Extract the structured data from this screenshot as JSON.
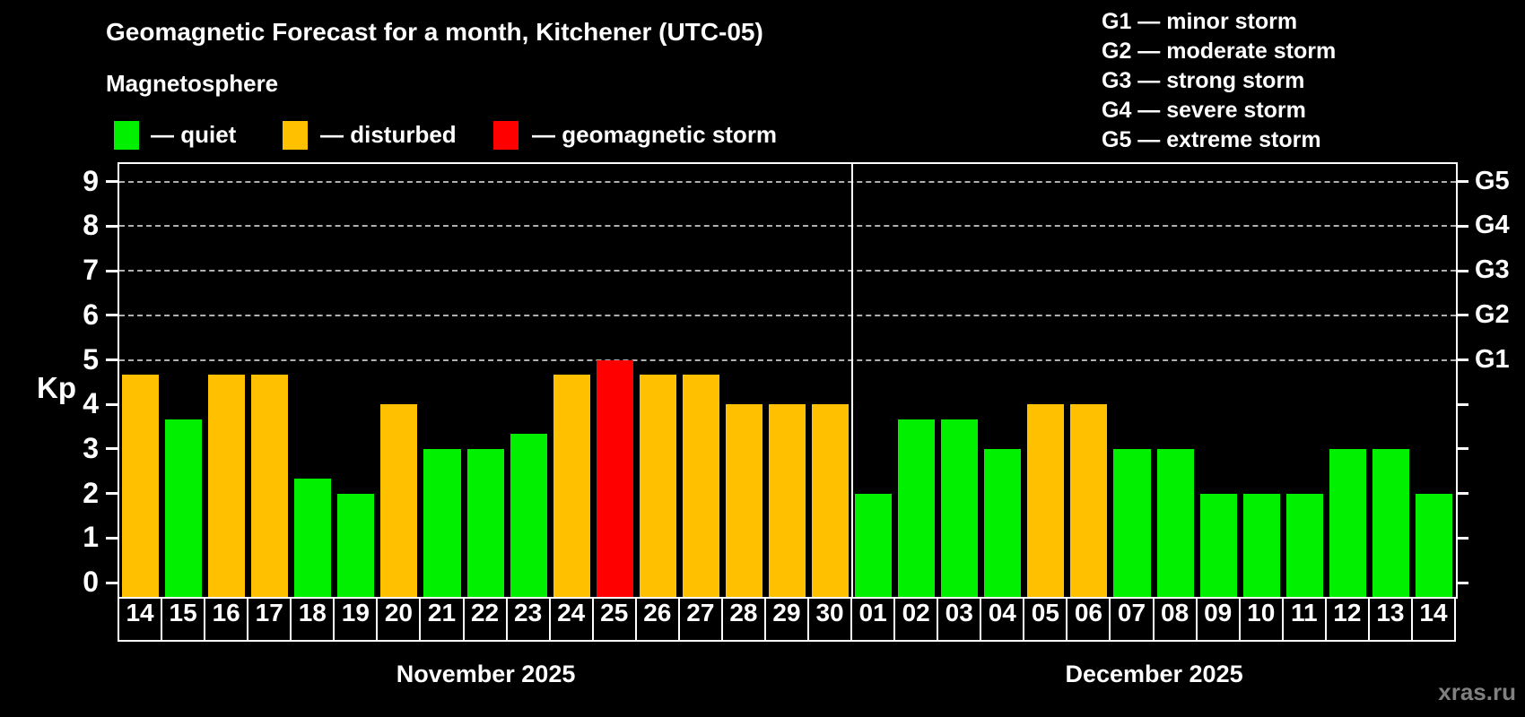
{
  "title": "Geomagnetic Forecast for a month, Kitchener (UTC-05)",
  "subtitle": "Magnetosphere",
  "legend": [
    {
      "label": "— quiet",
      "color_key": "quiet"
    },
    {
      "label": "— disturbed",
      "color_key": "disturbed"
    },
    {
      "label": "— geomagnetic storm",
      "color_key": "storm"
    }
  ],
  "g_legend": [
    "G1 — minor storm",
    "G2 — moderate storm",
    "G3 — strong storm",
    "G4 — severe storm",
    "G5 — extreme storm"
  ],
  "watermark": "xras.ru",
  "colors": {
    "background": "#000000",
    "axis": "#ffffff",
    "grid": "#b0b0b0",
    "watermark": "#808080",
    "quiet": "#00f000",
    "disturbed": "#ffc000",
    "storm": "#ff0000"
  },
  "chart_data": {
    "type": "bar",
    "title": "Geomagnetic Forecast for a month, Kitchener (UTC-05)",
    "ylabel": "Kp",
    "ylim": [
      0,
      9.4
    ],
    "y_ticks": [
      0,
      1,
      2,
      3,
      4,
      5,
      6,
      7,
      8,
      9
    ],
    "gridlines_kp": [
      5,
      6,
      7,
      8,
      9
    ],
    "grid": "dashed",
    "legend_position": "top-left",
    "right_axis_labels": [
      {
        "label": "G1",
        "kp": 5
      },
      {
        "label": "G2",
        "kp": 6
      },
      {
        "label": "G3",
        "kp": 7
      },
      {
        "label": "G4",
        "kp": 8
      },
      {
        "label": "G5",
        "kp": 9
      }
    ],
    "months": [
      {
        "label": "November 2025",
        "days": [
          {
            "day": "14",
            "kp": 4.67,
            "status": "disturbed"
          },
          {
            "day": "15",
            "kp": 3.67,
            "status": "quiet"
          },
          {
            "day": "16",
            "kp": 4.67,
            "status": "disturbed"
          },
          {
            "day": "17",
            "kp": 4.67,
            "status": "disturbed"
          },
          {
            "day": "18",
            "kp": 2.33,
            "status": "quiet"
          },
          {
            "day": "19",
            "kp": 2.0,
            "status": "quiet"
          },
          {
            "day": "20",
            "kp": 4.0,
            "status": "disturbed"
          },
          {
            "day": "21",
            "kp": 3.0,
            "status": "quiet"
          },
          {
            "day": "22",
            "kp": 3.0,
            "status": "quiet"
          },
          {
            "day": "23",
            "kp": 3.33,
            "status": "quiet"
          },
          {
            "day": "24",
            "kp": 4.67,
            "status": "disturbed"
          },
          {
            "day": "25",
            "kp": 5.0,
            "status": "storm"
          },
          {
            "day": "26",
            "kp": 4.67,
            "status": "disturbed"
          },
          {
            "day": "27",
            "kp": 4.67,
            "status": "disturbed"
          },
          {
            "day": "28",
            "kp": 4.0,
            "status": "disturbed"
          },
          {
            "day": "29",
            "kp": 4.0,
            "status": "disturbed"
          },
          {
            "day": "30",
            "kp": 4.0,
            "status": "disturbed"
          }
        ]
      },
      {
        "label": "December 2025",
        "days": [
          {
            "day": "01",
            "kp": 2.0,
            "status": "quiet"
          },
          {
            "day": "02",
            "kp": 3.67,
            "status": "quiet"
          },
          {
            "day": "03",
            "kp": 3.67,
            "status": "quiet"
          },
          {
            "day": "04",
            "kp": 3.0,
            "status": "quiet"
          },
          {
            "day": "05",
            "kp": 4.0,
            "status": "disturbed"
          },
          {
            "day": "06",
            "kp": 4.0,
            "status": "disturbed"
          },
          {
            "day": "07",
            "kp": 3.0,
            "status": "quiet"
          },
          {
            "day": "08",
            "kp": 3.0,
            "status": "quiet"
          },
          {
            "day": "09",
            "kp": 2.0,
            "status": "quiet"
          },
          {
            "day": "10",
            "kp": 2.0,
            "status": "quiet"
          },
          {
            "day": "11",
            "kp": 2.0,
            "status": "quiet"
          },
          {
            "day": "12",
            "kp": 3.0,
            "status": "quiet"
          },
          {
            "day": "13",
            "kp": 3.0,
            "status": "quiet"
          },
          {
            "day": "14",
            "kp": 2.0,
            "status": "quiet"
          }
        ]
      }
    ]
  }
}
